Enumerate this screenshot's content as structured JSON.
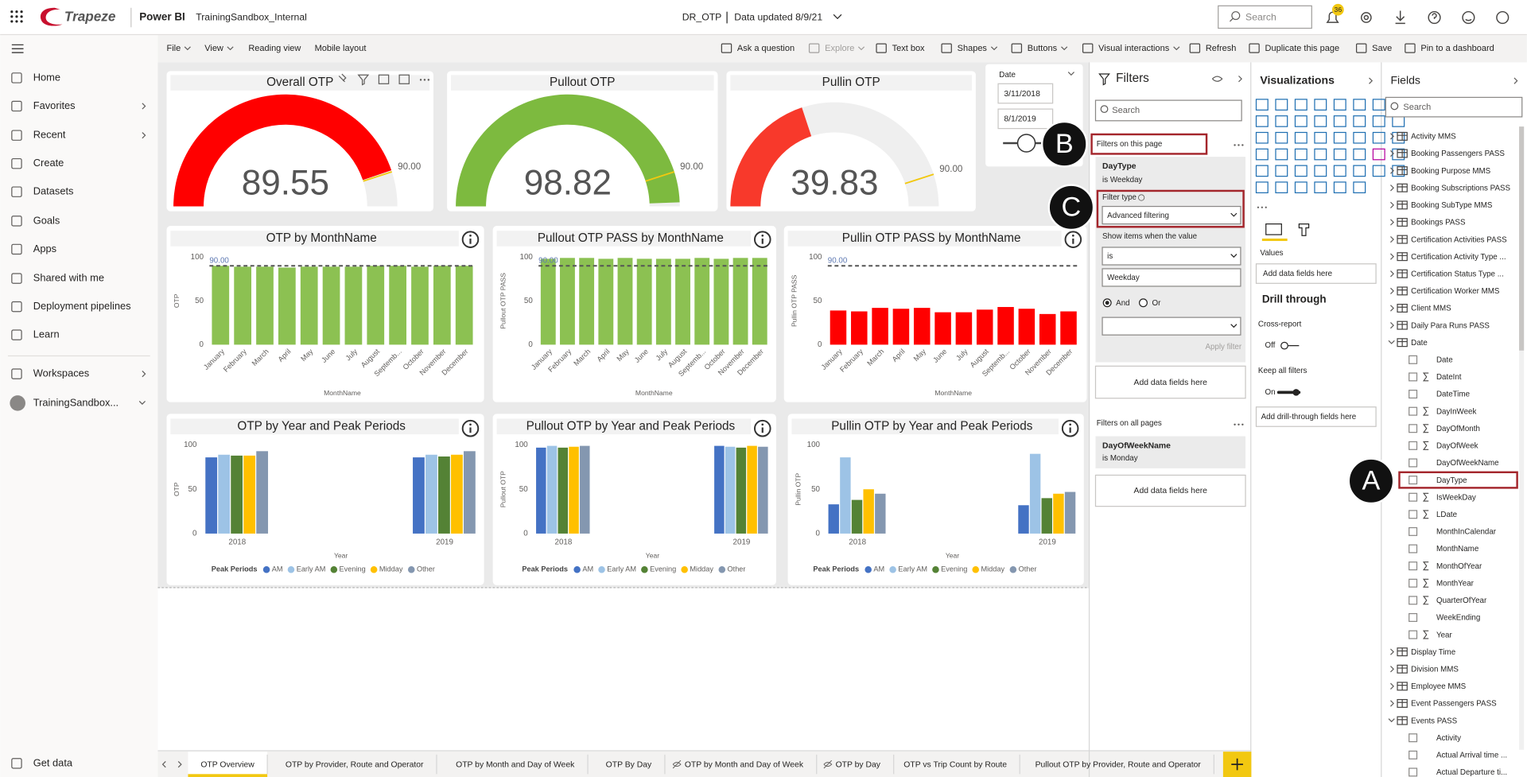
{
  "header": {
    "brand": "Trapeze",
    "app": "Power BI",
    "workspace": "TrainingSandbox_Internal",
    "report": "DR_OTP",
    "updated": "Data updated 8/9/21",
    "search": "Search",
    "notifications": "36"
  },
  "nav": {
    "items": [
      "Home",
      "Favorites",
      "Recent",
      "Create",
      "Datasets",
      "Goals",
      "Apps",
      "Shared with me",
      "Deployment pipelines",
      "Learn"
    ],
    "workspaces": "Workspaces",
    "workspace": "TrainingSandbox...",
    "get_data": "Get data"
  },
  "toolbar": [
    "File",
    "View",
    "Reading view",
    "Mobile layout",
    "Ask a question",
    "Explore",
    "Text box",
    "Shapes",
    "Buttons",
    "Visual interactions",
    "Refresh",
    "Duplicate this page",
    "Save",
    "Pin to a dashboard"
  ],
  "gauges": [
    {
      "type": "gauge",
      "title": "Overall OTP",
      "value": 89.55,
      "target": {
        "value": 90,
        "label": "90.00"
      },
      "lim": [
        0,
        100
      ],
      "color": "#ff0000"
    },
    {
      "type": "gauge",
      "title": "Pullout OTP",
      "value": 98.82,
      "target": {
        "value": 90,
        "label": "90.00"
      },
      "lim": [
        0,
        100
      ],
      "color": "#7dba3f"
    },
    {
      "type": "gauge",
      "title": "Pullin OTP",
      "value": 39.83,
      "target": {
        "value": 90,
        "label": "90.00"
      },
      "lim": [
        0,
        100
      ],
      "color": "#f8392b"
    }
  ],
  "date_slicer": {
    "title": "Date",
    "start": "3/11/2018",
    "end": "8/1/2019"
  },
  "month_charts": [
    {
      "type": "bar",
      "title": "OTP by MonthName",
      "y_label": "OTP",
      "x_label": "MonthName",
      "categories": [
        "January",
        "February",
        "March",
        "April",
        "May",
        "June",
        "July",
        "August",
        "Septemb...",
        "October",
        "November",
        "December"
      ],
      "values": [
        90,
        89,
        89,
        88,
        89,
        89,
        89,
        90,
        90,
        89,
        90,
        90
      ],
      "color": "#8cc152",
      "ylim": [
        0,
        100
      ],
      "yticks": [
        0,
        50,
        100
      ],
      "target": {
        "value": 90,
        "label": "90.00"
      }
    },
    {
      "type": "bar",
      "title": "Pullout OTP PASS by MonthName",
      "y_label": "Pullout OTP PASS",
      "x_label": "MonthName",
      "categories": [
        "January",
        "February",
        "March",
        "April",
        "May",
        "June",
        "July",
        "August",
        "Septemb...",
        "October",
        "November",
        "December"
      ],
      "values": [
        98,
        99,
        99,
        98,
        99,
        98,
        98,
        98,
        99,
        98,
        99,
        99
      ],
      "color": "#8cc152",
      "ylim": [
        0,
        100
      ],
      "yticks": [
        0,
        50,
        100
      ],
      "target": {
        "value": 90,
        "label": "90.00"
      }
    },
    {
      "type": "bar",
      "title": "Pullin OTP PASS by MonthName",
      "y_label": "Pullin OTP PASS",
      "x_label": "MonthName",
      "categories": [
        "January",
        "February",
        "March",
        "April",
        "May",
        "June",
        "July",
        "August",
        "Septemb...",
        "October",
        "November",
        "December"
      ],
      "values": [
        39,
        38,
        42,
        41,
        42,
        37,
        37,
        40,
        43,
        41,
        35,
        38
      ],
      "color": "#ff0000",
      "ylim": [
        0,
        100
      ],
      "yticks": [
        0,
        50,
        100
      ],
      "target": {
        "value": 90,
        "label": "90.00"
      }
    }
  ],
  "year_charts": [
    {
      "type": "bar",
      "title": "OTP by Year and Peak Periods",
      "y_label": "OTP",
      "x_label": "Year",
      "legend_title": "Peak Periods",
      "categories": [
        "2018",
        "2019"
      ],
      "ylim": [
        0,
        100
      ],
      "yticks": [
        0,
        50,
        100
      ],
      "series": [
        {
          "name": "AM",
          "color": "#4472c4",
          "values": [
            86,
            86
          ]
        },
        {
          "name": "Early AM",
          "color": "#9dc3e6",
          "values": [
            89,
            89
          ]
        },
        {
          "name": "Evening",
          "color": "#548235",
          "values": [
            88,
            87
          ]
        },
        {
          "name": "Midday",
          "color": "#ffc000",
          "values": [
            88,
            89
          ]
        },
        {
          "name": "Other",
          "color": "#8497b0",
          "values": [
            93,
            93
          ]
        }
      ]
    },
    {
      "type": "bar",
      "title": "Pullout OTP by Year and Peak Periods",
      "y_label": "Pullout OTP",
      "x_label": "Year",
      "legend_title": "Peak Periods",
      "categories": [
        "2018",
        "2019"
      ],
      "ylim": [
        0,
        100
      ],
      "yticks": [
        0,
        50,
        100
      ],
      "series": [
        {
          "name": "AM",
          "color": "#4472c4",
          "values": [
            97,
            99
          ]
        },
        {
          "name": "Early AM",
          "color": "#9dc3e6",
          "values": [
            99,
            98
          ]
        },
        {
          "name": "Evening",
          "color": "#548235",
          "values": [
            97,
            97
          ]
        },
        {
          "name": "Midday",
          "color": "#ffc000",
          "values": [
            98,
            99
          ]
        },
        {
          "name": "Other",
          "color": "#8497b0",
          "values": [
            99,
            98
          ]
        }
      ]
    },
    {
      "type": "bar",
      "title": "Pullin OTP by Year and Peak Periods",
      "y_label": "Pullin OTP",
      "x_label": "Year",
      "legend_title": "Peak Periods",
      "categories": [
        "2018",
        "2019"
      ],
      "ylim": [
        0,
        100
      ],
      "yticks": [
        0,
        50,
        100
      ],
      "series": [
        {
          "name": "AM",
          "color": "#4472c4",
          "values": [
            33,
            32
          ]
        },
        {
          "name": "Early AM",
          "color": "#9dc3e6",
          "values": [
            86,
            90
          ]
        },
        {
          "name": "Evening",
          "color": "#548235",
          "values": [
            38,
            40
          ]
        },
        {
          "name": "Midday",
          "color": "#ffc000",
          "values": [
            50,
            45
          ]
        },
        {
          "name": "Other",
          "color": "#8497b0",
          "values": [
            45,
            47
          ]
        }
      ]
    }
  ],
  "filters": {
    "title": "Filters",
    "search": "Search",
    "on_page": "Filters on this page",
    "page_filter": {
      "field": "DayType",
      "condition": "is Weekday",
      "filter_type_label": "Filter type",
      "filter_type": "Advanced filtering",
      "show_items": "Show items when the value",
      "operator": "is",
      "value": "Weekday",
      "and": "And",
      "or": "Or",
      "apply": "Apply filter"
    },
    "page_add": "Add data fields here",
    "on_all": "Filters on all pages",
    "all_filter": {
      "field": "DayOfWeekName",
      "condition": "is Monday"
    },
    "all_add": "Add data fields here"
  },
  "visualizations": {
    "title": "Visualizations",
    "values": "Values",
    "add_fields": "Add data fields here",
    "drill_through": "Drill through",
    "cross_report": "Cross-report",
    "off": "Off",
    "keep_filters": "Keep all filters",
    "on": "On",
    "add_drill": "Add drill-through fields here"
  },
  "fields": {
    "title": "Fields",
    "search": "Search",
    "tables": [
      {
        "name": "Activity MMS",
        "expanded": false
      },
      {
        "name": "Booking Passengers PASS",
        "expanded": false
      },
      {
        "name": "Booking Purpose MMS",
        "expanded": false
      },
      {
        "name": "Booking Subscriptions PASS",
        "expanded": false
      },
      {
        "name": "Booking SubType MMS",
        "expanded": false
      },
      {
        "name": "Bookings PASS",
        "expanded": false
      },
      {
        "name": "Certification Activities PASS",
        "expanded": false
      },
      {
        "name": "Certification Activity Type ...",
        "expanded": false
      },
      {
        "name": "Certification Status Type ...",
        "expanded": false
      },
      {
        "name": "Certification Worker MMS",
        "expanded": false
      },
      {
        "name": "Client MMS",
        "expanded": false
      },
      {
        "name": "Daily Para Runs PASS",
        "expanded": false
      },
      {
        "name": "Date",
        "expanded": true,
        "columns": [
          {
            "name": "Date",
            "sum": false
          },
          {
            "name": "DateInt",
            "sum": true
          },
          {
            "name": "DateTime",
            "sum": false
          },
          {
            "name": "DayInWeek",
            "sum": true
          },
          {
            "name": "DayOfMonth",
            "sum": true
          },
          {
            "name": "DayOfWeek",
            "sum": true
          },
          {
            "name": "DayOfWeekName",
            "sum": false
          },
          {
            "name": "DayType",
            "sum": false
          },
          {
            "name": "IsWeekDay",
            "sum": true
          },
          {
            "name": "LDate",
            "sum": true
          },
          {
            "name": "MonthInCalendar",
            "sum": false
          },
          {
            "name": "MonthName",
            "sum": false
          },
          {
            "name": "MonthOfYear",
            "sum": true
          },
          {
            "name": "MonthYear",
            "sum": true
          },
          {
            "name": "QuarterOfYear",
            "sum": true
          },
          {
            "name": "WeekEnding",
            "sum": false
          },
          {
            "name": "Year",
            "sum": true
          }
        ]
      },
      {
        "name": "Display Time",
        "expanded": false
      },
      {
        "name": "Division MMS",
        "expanded": false
      },
      {
        "name": "Employee MMS",
        "expanded": false
      },
      {
        "name": "Event Passengers PASS",
        "expanded": false
      },
      {
        "name": "Events PASS",
        "expanded": true,
        "columns": [
          {
            "name": "Activity",
            "sum": false
          },
          {
            "name": "Actual Arrival time ...",
            "sum": false
          },
          {
            "name": "Actual Departure ti...",
            "sum": false
          }
        ]
      }
    ]
  },
  "tabs": {
    "active": 0,
    "pages": [
      {
        "label": "OTP Overview",
        "hidden": false
      },
      {
        "label": "OTP by Provider, Route and Operator",
        "hidden": false
      },
      {
        "label": "OTP by Month and Day of Week",
        "hidden": false
      },
      {
        "label": "OTP By Day",
        "hidden": false
      },
      {
        "label": "OTP by Month and Day of Week",
        "hidden": true
      },
      {
        "label": "OTP by Day",
        "hidden": true
      },
      {
        "label": "OTP vs Trip Count by Route",
        "hidden": false
      },
      {
        "label": "Pullout OTP by Provider, Route and Operator",
        "hidden": false
      }
    ]
  },
  "callouts": [
    "A",
    "B",
    "C"
  ]
}
